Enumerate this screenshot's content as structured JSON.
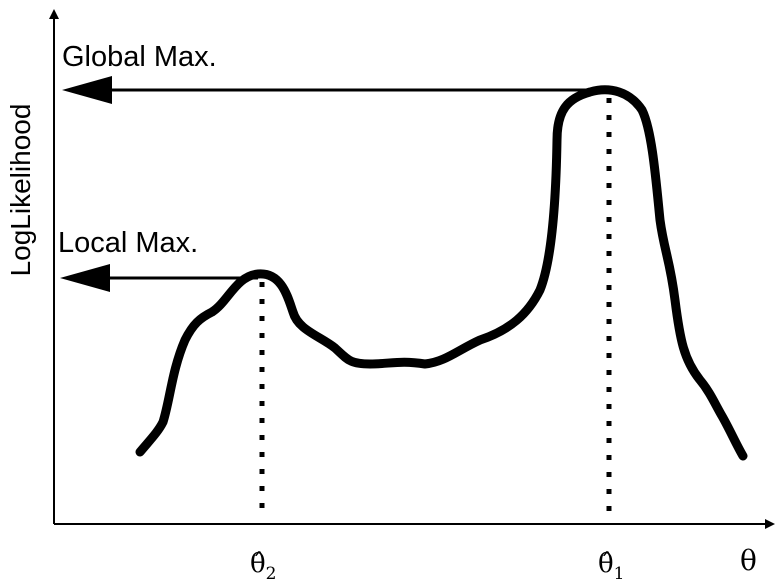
{
  "y_axis_label": "LogLikelihood",
  "x_axis_label": "θ",
  "annotations": {
    "global_max": "Global Max.",
    "local_max": "Local Max."
  },
  "ticks": {
    "theta_hat_1": {
      "symbol": "θ̂",
      "subscript": "1"
    },
    "theta_hat_2": {
      "symbol": "θ̂",
      "subscript": "2"
    }
  },
  "colors": {
    "ink": "#000000",
    "background": "#ffffff"
  }
}
